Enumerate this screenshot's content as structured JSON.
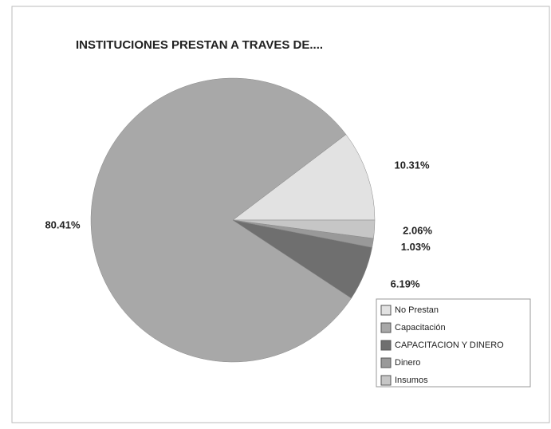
{
  "chart_data": {
    "type": "pie",
    "title": "INSTITUCIONES PRESTAN A TRAVES DE....",
    "categories": [
      "No Prestan",
      "Capacitación",
      "CAPACITACION Y DINERO",
      "Dinero",
      "Insumos"
    ],
    "values": [
      10.31,
      80.41,
      6.19,
      1.03,
      2.06
    ],
    "value_labels": [
      "10.31%",
      "80.41%",
      "6.19%",
      "1.03%",
      "2.06%"
    ],
    "colors": [
      "#e2e2e2",
      "#a8a8a8",
      "#6f6f6f",
      "#999999",
      "#c6c6c6"
    ],
    "legend": "bottom-right"
  }
}
